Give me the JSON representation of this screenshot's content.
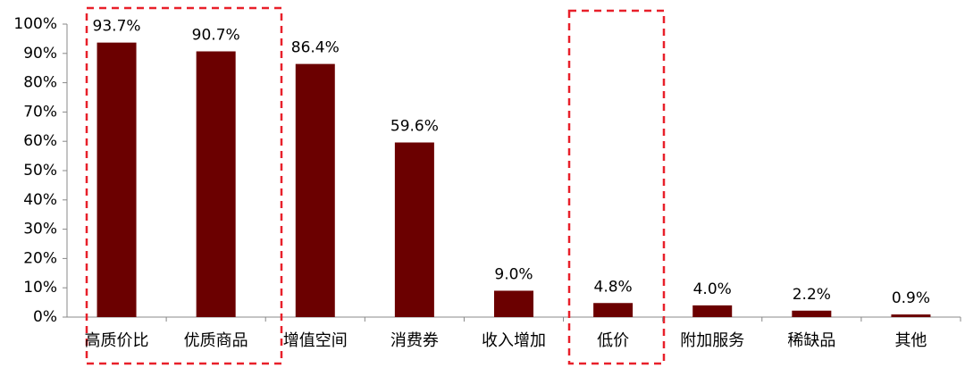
{
  "chart_data": {
    "type": "bar",
    "categories": [
      "高质价比",
      "优质商品",
      "增值空间",
      "消费券",
      "收入增加",
      "低价",
      "附加服务",
      "稀缺品",
      "其他"
    ],
    "values": [
      93.7,
      90.7,
      86.4,
      59.6,
      9.0,
      4.8,
      4.0,
      2.2,
      0.9
    ],
    "value_labels": [
      "93.7%",
      "90.7%",
      "86.4%",
      "59.6%",
      "9.0%",
      "4.8%",
      "4.0%",
      "2.2%",
      "0.9%"
    ],
    "color": "#6b0000",
    "ylim": [
      0,
      100
    ],
    "yticks": [
      {
        "value": 0,
        "label": "0%"
      },
      {
        "value": 10,
        "label": "10%"
      },
      {
        "value": 20,
        "label": "20%"
      },
      {
        "value": 30,
        "label": "30%"
      },
      {
        "value": 40,
        "label": "40%"
      },
      {
        "value": 50,
        "label": "50%"
      },
      {
        "value": 60,
        "label": "60%"
      },
      {
        "value": 70,
        "label": "70%"
      },
      {
        "value": 80,
        "label": "80%"
      },
      {
        "value": 90,
        "label": "90%"
      },
      {
        "value": 100,
        "label": "100%"
      }
    ],
    "grid": false
  }
}
